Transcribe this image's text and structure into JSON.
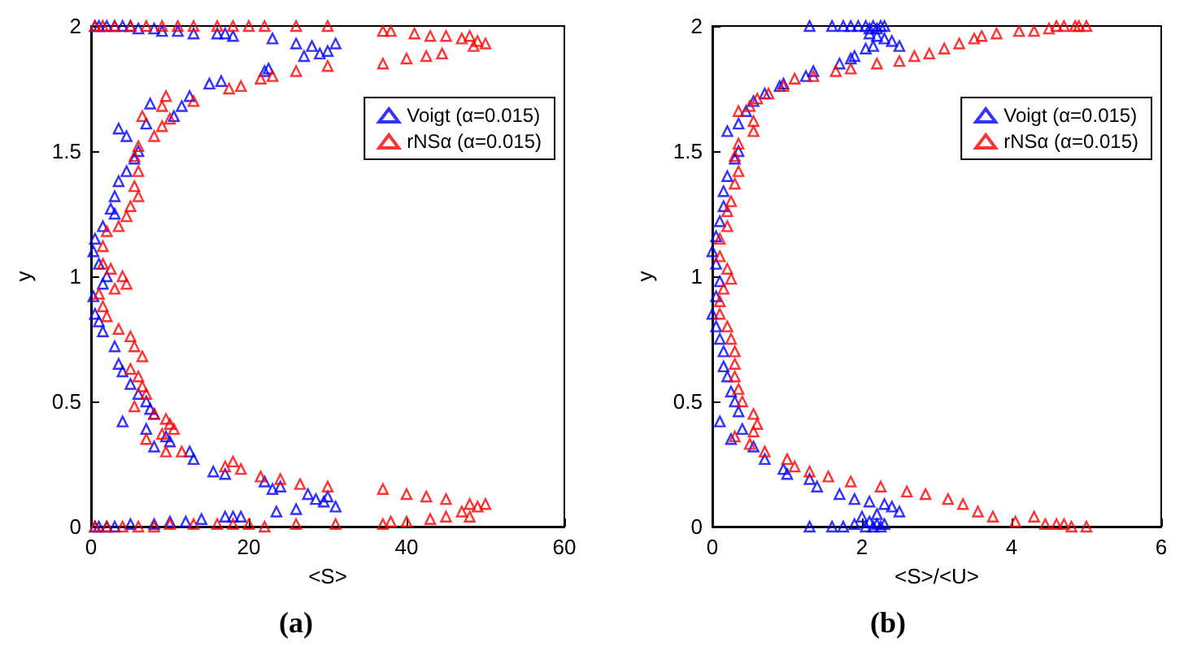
{
  "chart_data": [
    {
      "type": "scatter",
      "title": "(a)",
      "xlabel": "<S>",
      "ylabel": "y",
      "xlim": [
        0,
        60
      ],
      "xticks": [
        0,
        20,
        40,
        60
      ],
      "ylim": [
        0,
        2
      ],
      "yticks": [
        0,
        0.5,
        1,
        1.5,
        2
      ],
      "grid": false,
      "legend": "top right",
      "marker": "triangle",
      "series": [
        {
          "name": "Voigt (α=0.015)",
          "color": "#0000ff",
          "x": [
            0.5,
            1,
            2,
            3,
            4,
            5,
            6,
            8,
            9,
            11,
            13,
            16,
            17,
            18,
            23,
            26,
            28,
            29,
            30,
            31,
            27,
            22,
            22.5,
            16.5,
            15,
            12.5,
            11.5,
            10.5,
            7.5,
            7,
            3.5,
            4.5,
            6,
            5.5,
            4.5,
            3.5,
            3,
            2.5,
            3,
            1.5,
            0.5,
            0.3,
            1,
            2,
            1.5,
            0.3,
            0.5,
            1,
            1.5,
            3,
            3.5,
            4,
            5,
            6,
            7,
            7.5,
            8,
            4,
            7,
            9.5,
            10,
            8,
            12.5,
            13,
            15.5,
            17,
            22,
            23,
            24,
            27.5,
            28.5,
            29.5,
            30,
            31,
            26,
            23.5,
            0.5,
            1,
            2,
            3,
            5,
            8,
            10,
            12,
            14,
            17,
            18,
            19
          ],
          "values": [
            2,
            2,
            2,
            2,
            2,
            2,
            1.99,
            1.99,
            1.98,
            1.98,
            1.97,
            1.97,
            1.97,
            1.96,
            1.95,
            1.93,
            1.92,
            1.89,
            1.9,
            1.93,
            1.88,
            1.82,
            1.83,
            1.78,
            1.77,
            1.72,
            1.68,
            1.64,
            1.69,
            1.61,
            1.59,
            1.56,
            1.5,
            1.47,
            1.42,
            1.38,
            1.32,
            1.27,
            1.25,
            1.2,
            1.15,
            1.1,
            1.05,
            1,
            0.97,
            0.92,
            0.85,
            0.82,
            0.78,
            0.72,
            0.65,
            0.62,
            0.57,
            0.53,
            0.5,
            0.47,
            0.45,
            0.42,
            0.39,
            0.36,
            0.34,
            0.32,
            0.3,
            0.27,
            0.22,
            0.21,
            0.18,
            0.15,
            0.16,
            0.13,
            0.11,
            0.1,
            0.12,
            0.08,
            0.07,
            0.06,
            0,
            0,
            0,
            0,
            0.01,
            0.01,
            0.02,
            0.02,
            0.03,
            0.04,
            0.04,
            0.04
          ]
        },
        {
          "name": "rNSα (α=0.015)",
          "color": "#ff0000",
          "x": [
            0.5,
            1.5,
            3,
            5,
            7,
            9,
            11,
            13,
            16,
            18,
            20,
            22,
            26,
            30,
            37,
            38,
            41,
            43,
            45,
            47,
            48,
            49,
            50,
            48.5,
            37,
            40,
            42.5,
            44.5,
            30,
            26,
            23,
            21.5,
            19,
            17.5,
            13,
            9.5,
            9,
            10,
            6.5,
            9,
            8,
            6,
            5.5,
            6,
            5.5,
            6,
            5,
            4.5,
            3.5,
            2,
            1.5,
            1.5,
            2.5,
            4,
            4.5,
            3,
            1,
            1.5,
            2,
            3.5,
            5,
            5.5,
            6.5,
            5,
            6,
            6.5,
            7,
            5.5,
            8,
            9.5,
            10,
            10.5,
            9,
            7,
            9.5,
            11.5,
            17,
            18,
            19,
            21.5,
            24,
            26.5,
            30,
            37,
            40,
            42.5,
            45,
            48,
            49,
            50,
            47,
            0.5,
            2,
            4,
            6,
            8,
            10,
            13,
            16,
            18,
            20,
            22,
            26,
            31,
            37,
            38,
            40,
            43,
            45,
            48
          ],
          "values": [
            2,
            2,
            2,
            2,
            2,
            2,
            2,
            2,
            2,
            2,
            2,
            2,
            2,
            2,
            1.98,
            1.98,
            1.97,
            1.96,
            1.96,
            1.95,
            1.96,
            1.94,
            1.93,
            1.92,
            1.85,
            1.87,
            1.88,
            1.89,
            1.84,
            1.82,
            1.8,
            1.79,
            1.76,
            1.75,
            1.7,
            1.72,
            1.68,
            1.63,
            1.64,
            1.6,
            1.56,
            1.52,
            1.48,
            1.42,
            1.36,
            1.32,
            1.28,
            1.24,
            1.2,
            1.18,
            1.12,
            1.05,
            1.03,
            1,
            0.97,
            0.95,
            0.93,
            0.88,
            0.84,
            0.79,
            0.76,
            0.72,
            0.68,
            0.63,
            0.6,
            0.56,
            0.53,
            0.48,
            0.45,
            0.43,
            0.41,
            0.39,
            0.37,
            0.35,
            0.3,
            0.3,
            0.24,
            0.26,
            0.23,
            0.2,
            0.19,
            0.17,
            0.16,
            0.15,
            0.13,
            0.12,
            0.11,
            0.09,
            0.08,
            0.09,
            0.06,
            0,
            0,
            0,
            0,
            0,
            0.01,
            0.01,
            0.01,
            0.01,
            0.01,
            0,
            0.01,
            0.01,
            0.01,
            0.02,
            0.02,
            0.03,
            0.04,
            0.04
          ]
        }
      ]
    },
    {
      "type": "scatter",
      "title": "(b)",
      "xlabel": "<S>/<U>",
      "ylabel": "y",
      "xlim": [
        0,
        6
      ],
      "xticks": [
        0,
        2,
        4,
        6
      ],
      "ylim": [
        0,
        2
      ],
      "yticks": [
        0,
        0.5,
        1,
        1.5,
        2
      ],
      "grid": false,
      "legend": "top right",
      "marker": "triangle",
      "series": [
        {
          "name": "Voigt (α=0.015)",
          "color": "#0000ff",
          "x": [
            1.3,
            1.6,
            1.75,
            1.85,
            1.95,
            2.05,
            2.1,
            2.15,
            2.2,
            2.25,
            2.3,
            2.1,
            2.2,
            2.3,
            2.4,
            2.5,
            2.15,
            2.05,
            1.9,
            1.85,
            1.7,
            1.35,
            1.25,
            0.95,
            0.9,
            0.7,
            0.55,
            0.45,
            0.35,
            0.2,
            0.35,
            0.3,
            0.2,
            0.15,
            0.15,
            0.1,
            0.05,
            0,
            0.05,
            0.1,
            0.05,
            0,
            0.05,
            0.1,
            0.15,
            0.15,
            0.2,
            0.25,
            0.3,
            0.35,
            0.1,
            0.4,
            0.25,
            0.55,
            0.7,
            0.95,
            1,
            1.3,
            1.4,
            1.7,
            1.9,
            2.1,
            2.3,
            2.4,
            2.5,
            2.2,
            2,
            2.1,
            2.2,
            2.3,
            1.9,
            1.75,
            1.6,
            1.3,
            2.05,
            2.15,
            2.25
          ],
          "values": [
            2,
            2,
            2,
            2,
            2,
            2,
            1.99,
            2,
            1.99,
            2,
            2,
            1.97,
            1.96,
            1.95,
            1.94,
            1.92,
            1.92,
            1.91,
            1.88,
            1.87,
            1.85,
            1.82,
            1.8,
            1.77,
            1.76,
            1.73,
            1.7,
            1.66,
            1.61,
            1.58,
            1.5,
            1.47,
            1.4,
            1.34,
            1.28,
            1.22,
            1.16,
            1.1,
            1.05,
            0.98,
            0.92,
            0.85,
            0.8,
            0.75,
            0.7,
            0.64,
            0.6,
            0.54,
            0.5,
            0.46,
            0.42,
            0.39,
            0.35,
            0.32,
            0.27,
            0.23,
            0.21,
            0.19,
            0.16,
            0.13,
            0.11,
            0.1,
            0.09,
            0.08,
            0.06,
            0.05,
            0.04,
            0.02,
            0.01,
            0.01,
            0.01,
            0,
            0,
            0,
            0,
            0,
            0
          ]
        },
        {
          "name": "rNSα (α=0.015)",
          "color": "#ff0000",
          "x": [
            2.2,
            2.5,
            2.7,
            2.9,
            3.1,
            3.3,
            3.5,
            3.6,
            3.8,
            4.1,
            4.3,
            4.5,
            4.7,
            4.85,
            5,
            4.9,
            4.6,
            1.85,
            1.65,
            1.35,
            1.1,
            0.95,
            0.75,
            0.6,
            0.5,
            0.35,
            0.55,
            0.55,
            0.35,
            0.3,
            0.35,
            0.3,
            0.25,
            0.2,
            0.2,
            0.1,
            0.1,
            0.2,
            0.25,
            0.15,
            0.1,
            0.1,
            0.2,
            0.25,
            0.3,
            0.3,
            0.3,
            0.35,
            0.4,
            0.55,
            0.6,
            0.55,
            0.3,
            0.5,
            0.7,
            1,
            1.1,
            1.3,
            1.55,
            1.85,
            2.25,
            2.6,
            2.85,
            3.15,
            3.35,
            3.55,
            3.75,
            4.05,
            4.3,
            4.45,
            4.6,
            4.8,
            5,
            4.7
          ],
          "values": [
            1.85,
            1.86,
            1.88,
            1.89,
            1.91,
            1.93,
            1.95,
            1.96,
            1.97,
            1.98,
            1.98,
            1.99,
            2,
            2,
            2,
            2,
            2,
            1.83,
            1.82,
            1.8,
            1.79,
            1.76,
            1.73,
            1.71,
            1.68,
            1.66,
            1.62,
            1.58,
            1.53,
            1.48,
            1.42,
            1.37,
            1.3,
            1.26,
            1.2,
            1.15,
            1.08,
            1.03,
            0.99,
            0.95,
            0.9,
            0.85,
            0.8,
            0.75,
            0.7,
            0.65,
            0.6,
            0.55,
            0.5,
            0.45,
            0.41,
            0.38,
            0.36,
            0.33,
            0.3,
            0.27,
            0.24,
            0.22,
            0.2,
            0.18,
            0.16,
            0.14,
            0.13,
            0.11,
            0.09,
            0.06,
            0.04,
            0.02,
            0.04,
            0.01,
            0.01,
            0,
            0,
            0.01
          ]
        }
      ]
    }
  ]
}
